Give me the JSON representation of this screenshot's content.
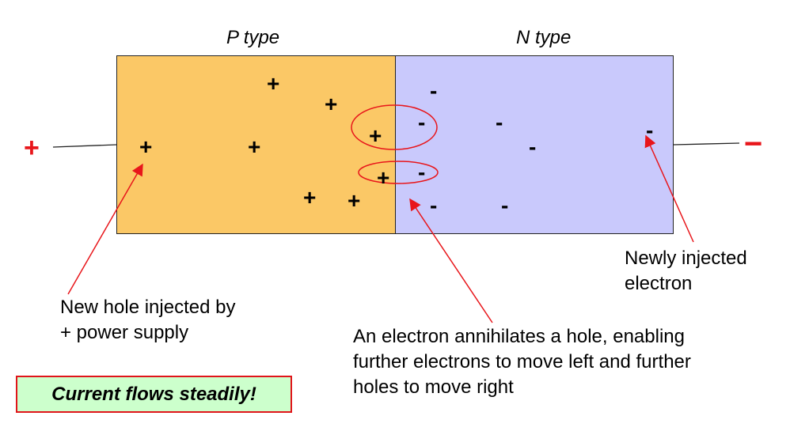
{
  "regions": {
    "p_label": "P type",
    "n_label": "N type"
  },
  "terminals": {
    "positive": "+",
    "negative": "−"
  },
  "charges": {
    "hole": "+",
    "electron": "-"
  },
  "annotations": {
    "new_hole": "New hole injected by\n+ power supply",
    "annihilation": "An electron annihilates a hole, enabling\nfurther electrons to move left and further\nholes to move right",
    "new_electron": "Newly injected\nelectron"
  },
  "callout": "Current flows steadily!",
  "colors": {
    "p_region": "#fbc866",
    "n_region": "#c9c9fc",
    "arrow": "#e8161b",
    "callout_bg": "#ccffcc"
  }
}
